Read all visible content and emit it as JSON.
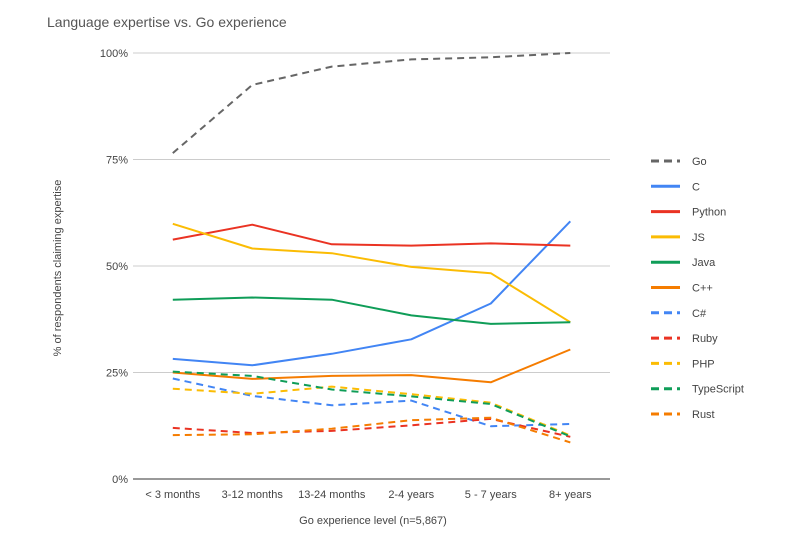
{
  "chart_data": {
    "type": "line",
    "title": "Language expertise vs. Go experience",
    "xlabel": "Go experience level (n=5,867)",
    "ylabel": "% of respondents claiming expertise",
    "ylim": [
      0,
      100
    ],
    "yticks": [
      {
        "value": 0,
        "label": "0%"
      },
      {
        "value": 25,
        "label": "25%"
      },
      {
        "value": 50,
        "label": "50%"
      },
      {
        "value": 75,
        "label": "75%"
      },
      {
        "value": 100,
        "label": "100%"
      }
    ],
    "categories": [
      "< 3 months",
      "3-12 months",
      "13-24 months",
      "2-4 years",
      "5 - 7 years",
      "8+ years"
    ],
    "grid": true,
    "legend_position": "right",
    "series": [
      {
        "name": "Go",
        "color": "#666666",
        "dashed": true,
        "values": [
          76.5,
          92.5,
          96.8,
          98.5,
          99.0,
          100.0
        ]
      },
      {
        "name": "C",
        "color": "#4285f4",
        "dashed": false,
        "values": [
          28.2,
          26.7,
          29.4,
          32.8,
          41.2,
          60.5
        ]
      },
      {
        "name": "Python",
        "color": "#ea3323",
        "dashed": false,
        "values": [
          56.2,
          59.7,
          55.1,
          54.8,
          55.3,
          54.8
        ]
      },
      {
        "name": "JS",
        "color": "#fbbc04",
        "dashed": false,
        "values": [
          59.9,
          54.1,
          53.0,
          49.8,
          48.3,
          36.8
        ]
      },
      {
        "name": "Java",
        "color": "#0f9d58",
        "dashed": false,
        "values": [
          42.1,
          42.6,
          42.1,
          38.4,
          36.4,
          36.8
        ]
      },
      {
        "name": "C++",
        "color": "#f57c00",
        "dashed": false,
        "values": [
          25.0,
          23.5,
          24.2,
          24.4,
          22.7,
          30.4
        ]
      },
      {
        "name": "C#",
        "color": "#4285f4",
        "dashed": true,
        "values": [
          23.6,
          19.5,
          17.3,
          18.4,
          12.4,
          12.9
        ]
      },
      {
        "name": "Ruby",
        "color": "#ea3323",
        "dashed": true,
        "values": [
          12.0,
          10.8,
          11.3,
          12.6,
          14.1,
          9.9
        ]
      },
      {
        "name": "PHP",
        "color": "#fbbc04",
        "dashed": true,
        "values": [
          21.2,
          20.0,
          21.7,
          19.9,
          17.9,
          10.2
        ]
      },
      {
        "name": "TypeScript",
        "color": "#0f9d58",
        "dashed": true,
        "values": [
          25.2,
          24.2,
          21.0,
          19.4,
          17.6,
          10.0
        ]
      },
      {
        "name": "Rust",
        "color": "#f57c00",
        "dashed": true,
        "values": [
          10.3,
          10.5,
          11.8,
          13.8,
          14.4,
          8.6
        ]
      }
    ]
  }
}
